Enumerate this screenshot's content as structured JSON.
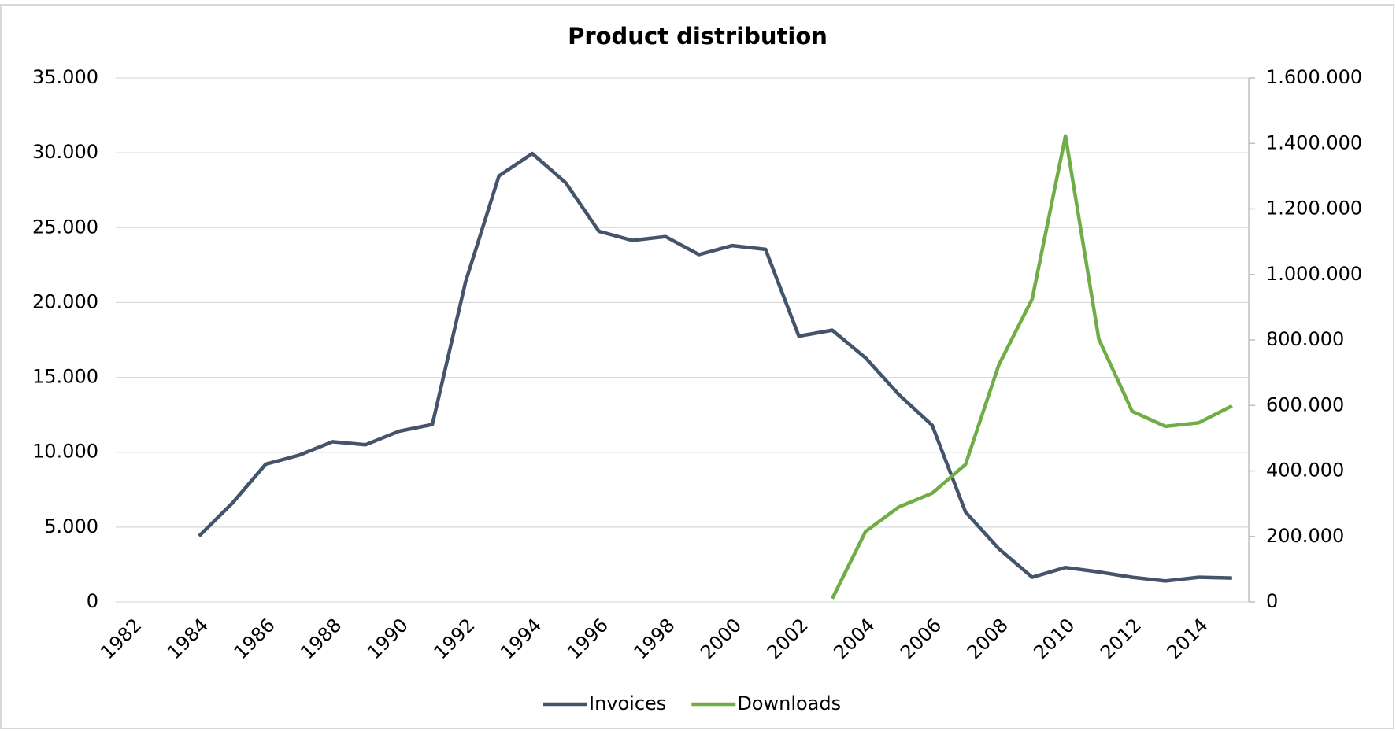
{
  "chart_data": {
    "type": "line",
    "title": "Product distribution",
    "categories": [
      "1982",
      null,
      "1984",
      null,
      "1986",
      null,
      "1988",
      null,
      "1990",
      null,
      "1992",
      null,
      "1994",
      null,
      "1996",
      null,
      "1998",
      null,
      "2000",
      null,
      "2002",
      null,
      "2004",
      null,
      "2006",
      null,
      "2008",
      null,
      "2010",
      null,
      "2012",
      null,
      "2014",
      null
    ],
    "series": [
      {
        "name": "Invoices",
        "color": "#44546a",
        "values": [
          null,
          null,
          4400,
          6600,
          9200,
          9800,
          10700,
          10500,
          11400,
          11850,
          21400,
          28450,
          29950,
          28000,
          24750,
          24150,
          24400,
          23200,
          23800,
          23550,
          17750,
          18150,
          16300,
          13850,
          11800,
          6000,
          3550,
          1650,
          2300,
          2000,
          1650,
          1400,
          1650,
          1600
        ]
      },
      {
        "name": "Downloads",
        "color": "#70ad47",
        "axis": "y2",
        "values": [
          null,
          null,
          null,
          null,
          null,
          null,
          null,
          null,
          null,
          null,
          null,
          null,
          null,
          null,
          null,
          null,
          null,
          null,
          null,
          null,
          null,
          10000,
          215000,
          290000,
          332000,
          420000,
          724000,
          925000,
          1423000,
          803000,
          582000,
          536000,
          547000,
          599000
        ]
      }
    ],
    "ylim": [
      0,
      35000
    ],
    "yticks": [
      0,
      {
        "value": 5000,
        "label": "5.000"
      },
      {
        "value": 10000,
        "label": "10.000"
      },
      {
        "value": 15000,
        "label": "15.000"
      },
      {
        "value": 20000,
        "label": "20.000"
      },
      {
        "value": 25000,
        "label": "25.000"
      },
      {
        "value": 30000,
        "label": "30.000"
      },
      {
        "value": 35000,
        "label": "35.000"
      }
    ],
    "y2lim": [
      0,
      1600000
    ],
    "y2ticks": [
      0,
      {
        "value": 200000,
        "label": "200.000"
      },
      {
        "value": 400000,
        "label": "400.000"
      },
      {
        "value": 600000,
        "label": "600.000"
      },
      {
        "value": 800000,
        "label": "800.000"
      },
      {
        "value": 1000000,
        "label": "1.000.000"
      },
      {
        "value": 1200000,
        "label": "1.200.000"
      },
      {
        "value": 1400000,
        "label": "1.400.000"
      },
      {
        "value": 1600000,
        "label": "1.600.000"
      }
    ],
    "grid": true,
    "legend": "bottom"
  }
}
